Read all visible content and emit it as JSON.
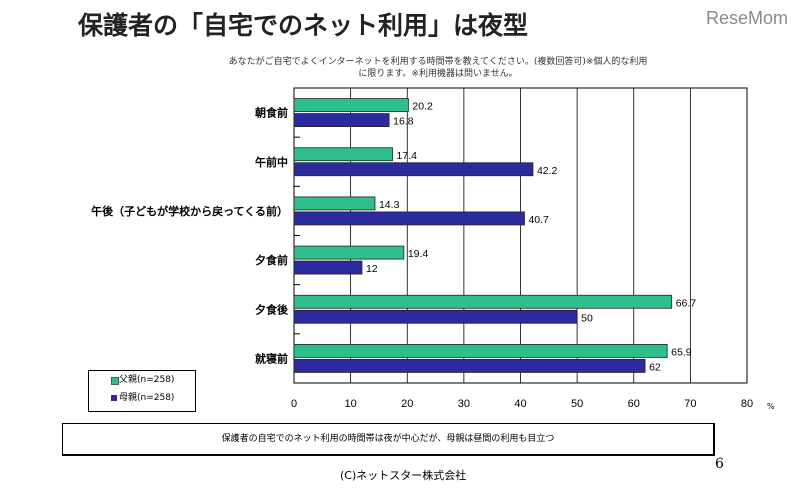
{
  "title": "保護者の「自宅でのネット利用」は夜型",
  "logo": "ReseMom",
  "subtitle": "あなたがご自宅でよくインターネットを利用する時間帯を教えてください。(複数回答可)※個人的な利用に限ります。※利用機器は問いません。",
  "note": "保護者の自宅でのネット利用の時間帯は夜が中心だが、母親は昼間の利用も目立つ",
  "copyright": "(C)ネットスター株式会社",
  "page_number": "6",
  "colors": {
    "father": "#2fbf8c",
    "mother": "#2b2b9e"
  },
  "chart_data": {
    "type": "bar",
    "orientation": "horizontal",
    "categories": [
      "朝食前",
      "午前中",
      "午後（子どもが学校から戻ってくる前）",
      "夕食前",
      "夕食後",
      "就寝前"
    ],
    "series": [
      {
        "name": "父親(n=258)",
        "values": [
          20.2,
          17.4,
          14.3,
          19.4,
          66.7,
          65.9
        ]
      },
      {
        "name": "母親(n=258)",
        "values": [
          16.8,
          42.2,
          40.7,
          12,
          50,
          62
        ]
      }
    ],
    "xlim": [
      0,
      80
    ],
    "xticks": [
      "0",
      "10",
      "20",
      "30",
      "40",
      "50",
      "60",
      "70",
      "80"
    ],
    "xunit": "%",
    "legend": "bottom-left",
    "grid": true
  }
}
